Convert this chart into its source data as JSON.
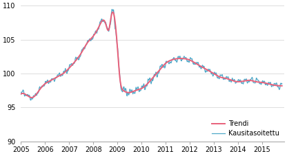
{
  "title": "",
  "xlim": [
    2005.0,
    2015.92
  ],
  "ylim": [
    90,
    110
  ],
  "yticks": [
    90,
    95,
    100,
    105,
    110
  ],
  "xtick_labels": [
    "2005",
    "2006",
    "2007",
    "2008",
    "2009",
    "2010",
    "2011",
    "2012",
    "2013",
    "2014",
    "2015"
  ],
  "trend_color": "#e8607a",
  "seasonal_color": "#4fa8c8",
  "trend_lw": 1.4,
  "seasonal_lw": 0.9,
  "legend_labels": [
    "Trendi",
    "Kausitasoitettu"
  ],
  "background_color": "#ffffff",
  "grid_color": "#d0d0d0"
}
